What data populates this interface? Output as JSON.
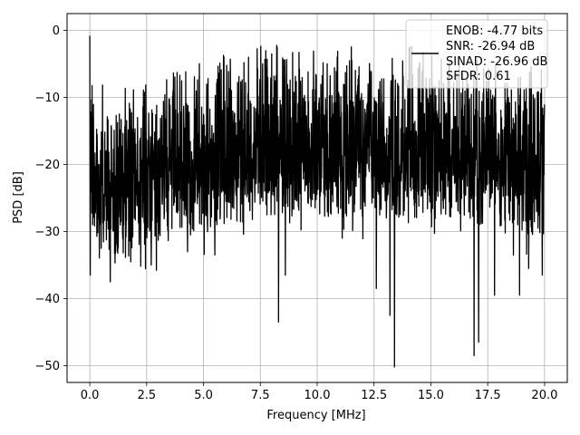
{
  "chart_data": {
    "type": "line",
    "title": "",
    "xlabel": "Frequency [MHz]",
    "ylabel": "PSD [dB]",
    "xlim": [
      -1.0,
      21.0
    ],
    "ylim": [
      -52.5,
      2.5
    ],
    "xticks": [
      0.0,
      2.5,
      5.0,
      7.5,
      10.0,
      12.5,
      15.0,
      17.5,
      20.0
    ],
    "xtick_labels": [
      "0.0",
      "2.5",
      "5.0",
      "7.5",
      "10.0",
      "12.5",
      "15.0",
      "17.5",
      "20.0"
    ],
    "yticks": [
      0,
      -10,
      -20,
      -30,
      -40,
      -50
    ],
    "ytick_labels": [
      "0",
      "−10",
      "−20",
      "−30",
      "−40",
      "−50"
    ],
    "grid": true,
    "legend_position": "top-right",
    "series": [
      {
        "name": "ENOB: -4.77 bits\nSNR: -26.94 dB\nSINAD: -26.96 dB\nSFDR: 0.61",
        "color": "#000000",
        "x_range": [
          0.0,
          20.0
        ],
        "note_shape": "dense noise trace",
        "envelope_top": [
          [
            0.0,
            -1
          ],
          [
            0.2,
            -6
          ],
          [
            1.0,
            -9
          ],
          [
            3.0,
            -6
          ],
          [
            5.0,
            -4
          ],
          [
            7.5,
            -2
          ],
          [
            10.0,
            -2
          ],
          [
            12.5,
            -2
          ],
          [
            15.0,
            -2
          ],
          [
            17.5,
            -3
          ],
          [
            20.0,
            -5
          ]
        ],
        "dips": [
          {
            "x": 0.02,
            "y": -36.5
          },
          {
            "x": 0.5,
            "y": -32.5
          },
          {
            "x": 0.9,
            "y": -37.5
          },
          {
            "x": 1.8,
            "y": -34.5
          },
          {
            "x": 2.7,
            "y": -35.0
          },
          {
            "x": 4.3,
            "y": -33.0
          },
          {
            "x": 5.5,
            "y": -33.5
          },
          {
            "x": 8.3,
            "y": -43.5
          },
          {
            "x": 8.6,
            "y": -36.5
          },
          {
            "x": 11.1,
            "y": -31.0
          },
          {
            "x": 12.6,
            "y": -38.5
          },
          {
            "x": 13.2,
            "y": -42.5
          },
          {
            "x": 13.4,
            "y": -50.2
          },
          {
            "x": 16.9,
            "y": -48.5
          },
          {
            "x": 17.1,
            "y": -46.5
          },
          {
            "x": 17.8,
            "y": -39.5
          },
          {
            "x": 18.9,
            "y": -39.5
          },
          {
            "x": 19.3,
            "y": -35.5
          },
          {
            "x": 19.9,
            "y": -36.5
          }
        ]
      }
    ]
  },
  "legend": {
    "lines": [
      "ENOB: -4.77 bits",
      "SNR: -26.94 dB",
      "SINAD: -26.96 dB",
      "SFDR: 0.61"
    ]
  }
}
